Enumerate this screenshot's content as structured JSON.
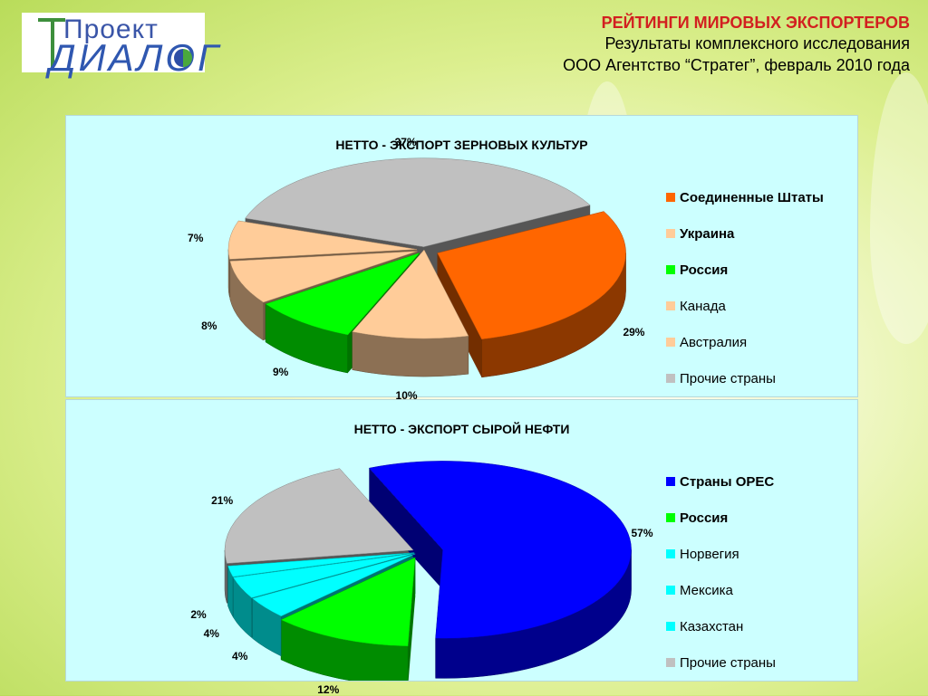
{
  "header": {
    "title": "РЕЙТИНГИ МИРОВЫХ ЭКСПОРТЕРОВ",
    "line2": "Результаты комплексного исследования",
    "line3": "ООО Агентство “Стратег”, февраль 2010 года"
  },
  "logo": {
    "top": "Проект",
    "bottom": "ДИАЛОГ"
  },
  "chart_data": [
    {
      "type": "pie",
      "title": "НЕТТО - ЭКСПОРТ ЗЕРНОВЫХ КУЛЬТУР",
      "categories": [
        "Соединенные Штаты",
        "Украина",
        "Россия",
        "Канада",
        "Австралия",
        "Прочие страны"
      ],
      "values": [
        29,
        10,
        9,
        8,
        7,
        37
      ],
      "labels": [
        "29%",
        "10%",
        "9%",
        "8%",
        "7%",
        "37%"
      ],
      "colors": [
        "#ff6600",
        "#ffcc99",
        "#00ff00",
        "#ffcc99",
        "#ffcc99",
        "#c0c0c0"
      ],
      "legend_bold": [
        true,
        true,
        true,
        false,
        false,
        false
      ],
      "legend_position": "right"
    },
    {
      "type": "pie",
      "title": "НЕТТО - ЭКСПОРТ СЫРОЙ НЕФТИ",
      "categories": [
        "Страны ОРЕС",
        "Россия",
        "Норвегия",
        "Мексика",
        "Казахстан",
        "Прочие страны"
      ],
      "values": [
        57,
        12,
        4,
        4,
        2,
        21
      ],
      "labels": [
        "57%",
        "12%",
        "4%",
        "4%",
        "2%",
        "21%"
      ],
      "colors": [
        "#0000ff",
        "#00ff00",
        "#00ffff",
        "#00ffff",
        "#00ffff",
        "#c0c0c0"
      ],
      "legend_bold": [
        true,
        true,
        false,
        false,
        false,
        false
      ],
      "legend_position": "right"
    }
  ]
}
